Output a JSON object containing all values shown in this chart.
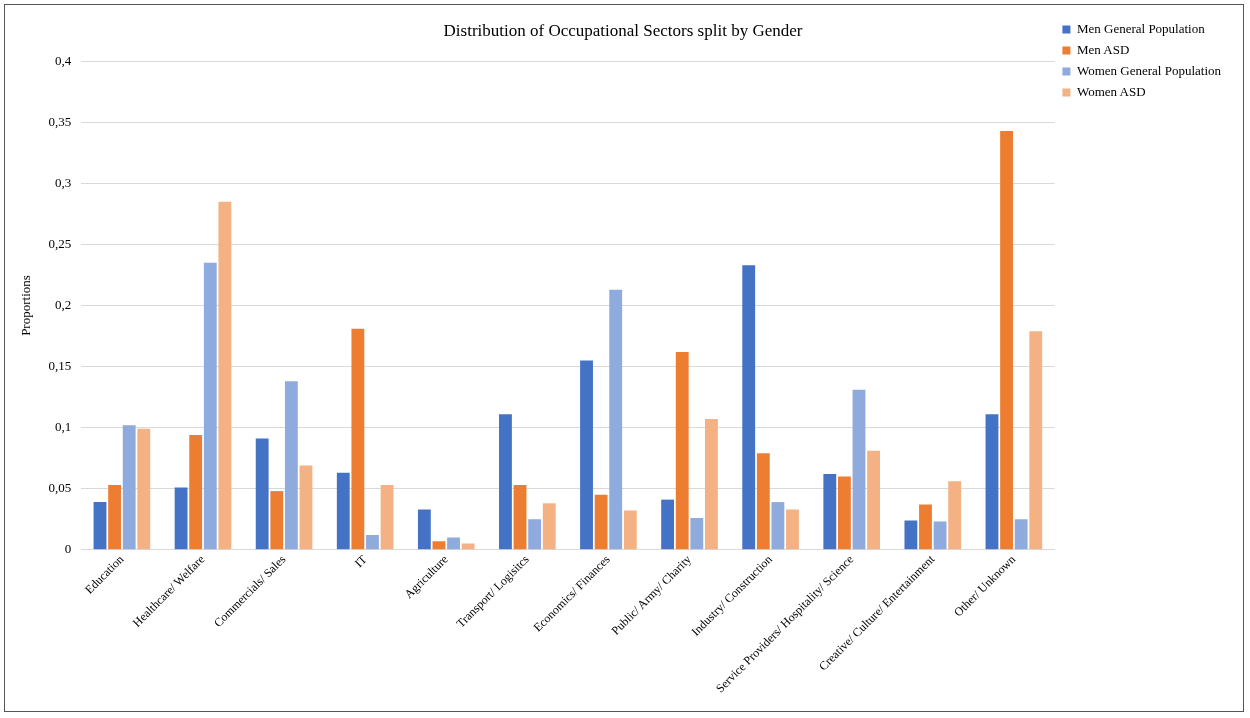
{
  "chart_data": {
    "type": "bar",
    "title": "Distribution of Occupational Sectors split by Gender",
    "ylabel": "Proportions",
    "categories": [
      "Education",
      "Healthcare/ Welfare",
      "Commercials/ Sales",
      "IT",
      "Agriculture",
      "Transport/ Logisitcs",
      "Economics/ Finances",
      "Public/ Army/ Charity",
      "Industry/ Construction",
      "Service Providers/ Hospitality/ Science",
      "Creative/ Culture/ Entertainment",
      "Other/ Unknown"
    ],
    "series": [
      {
        "name": "Men General Population",
        "color": "#4472c4",
        "values": [
          0.039,
          0.051,
          0.091,
          0.063,
          0.033,
          0.111,
          0.155,
          0.041,
          0.233,
          0.062,
          0.024,
          0.111
        ]
      },
      {
        "name": "Men ASD",
        "color": "#ed7d31",
        "values": [
          0.053,
          0.094,
          0.048,
          0.181,
          0.007,
          0.053,
          0.045,
          0.162,
          0.079,
          0.06,
          0.037,
          0.343
        ]
      },
      {
        "name": "Women General Population",
        "color": "#8faadc",
        "values": [
          0.102,
          0.235,
          0.138,
          0.012,
          0.01,
          0.025,
          0.213,
          0.026,
          0.039,
          0.131,
          0.023,
          0.025
        ]
      },
      {
        "name": "Women ASD",
        "color": "#f4b183",
        "values": [
          0.099,
          0.285,
          0.069,
          0.053,
          0.005,
          0.038,
          0.032,
          0.107,
          0.033,
          0.081,
          0.056,
          0.179
        ]
      }
    ],
    "ylim": [
      0,
      0.4
    ],
    "yticks": [
      0,
      {
        "value": 0.05,
        "label": "0,05"
      },
      {
        "value": 0.1,
        "label": "0,1"
      },
      {
        "value": 0.15,
        "label": "0,15"
      },
      {
        "value": 0.2,
        "label": "0,2"
      },
      {
        "value": 0.25,
        "label": "0,25"
      },
      {
        "value": 0.3,
        "label": "0,3"
      },
      {
        "value": 0.35,
        "label": "0,35"
      },
      {
        "value": 0.4,
        "label": "0,4"
      }
    ],
    "grid": "y",
    "legend": "right"
  }
}
